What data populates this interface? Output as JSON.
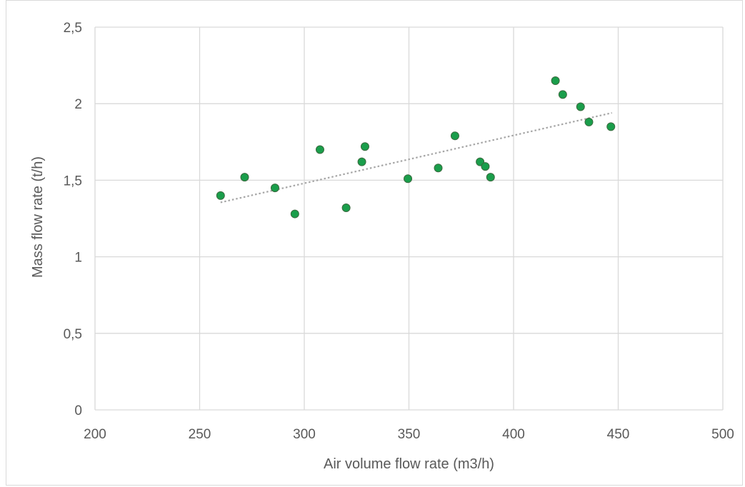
{
  "chart_data": {
    "type": "scatter",
    "title": "",
    "xlabel": "Air volume flow rate (m3/h)",
    "ylabel": "Mass flow rate (t/h)",
    "xlim": [
      200,
      500
    ],
    "ylim": [
      0,
      2.5
    ],
    "x_ticks": [
      200,
      250,
      300,
      350,
      400,
      450,
      500
    ],
    "x_tick_labels": [
      "200",
      "250",
      "300",
      "350",
      "400",
      "450",
      "500"
    ],
    "y_ticks": [
      0,
      0.5,
      1,
      1.5,
      2,
      2.5
    ],
    "y_tick_labels": [
      "0",
      "0,5",
      "1",
      "1,5",
      "2",
      "2,5"
    ],
    "grid": true,
    "legend": "none",
    "marker_color": "#1a9e4b",
    "marker_edge_color": "#3a6b3f",
    "trendline": {
      "type": "linear",
      "style": "dotted",
      "color": "#a6a6a6",
      "x": [
        260,
        447
      ],
      "y": [
        1.355,
        1.94
      ]
    },
    "series": [
      {
        "x": [
          260,
          271.5,
          286,
          295.5,
          307.5,
          320,
          327.5,
          329,
          349.5,
          364,
          372,
          384,
          386.5,
          389,
          420,
          423.5,
          432,
          436,
          446.5
        ],
        "y": [
          1.4,
          1.52,
          1.45,
          1.28,
          1.7,
          1.32,
          1.62,
          1.72,
          1.51,
          1.58,
          1.79,
          1.62,
          1.59,
          1.52,
          2.15,
          2.06,
          1.98,
          1.88,
          1.85
        ]
      }
    ]
  }
}
